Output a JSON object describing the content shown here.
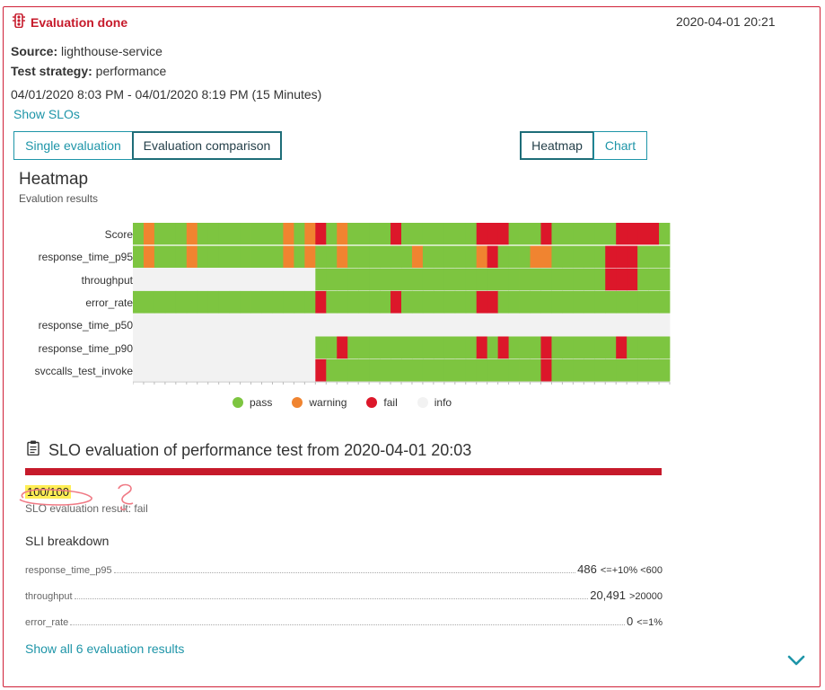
{
  "header": {
    "status": "Evaluation done",
    "timestamp": "2020-04-01 20:21",
    "source_label": "Source:",
    "source_value": "lighthouse-service",
    "strategy_label": "Test strategy:",
    "strategy_value": "performance",
    "timeframe": "04/01/2020 8:03 PM - 04/01/2020 8:19 PM (15 Minutes)",
    "show_slos": "Show SLOs"
  },
  "tabs": {
    "single": "Single evaluation",
    "comparison": "Evaluation comparison",
    "heatmap": "Heatmap",
    "chart": "Chart"
  },
  "heatmap": {
    "title": "Heatmap",
    "subtitle": "Evalution results",
    "rows": [
      "Score",
      "response_time_p95",
      "throughput",
      "error_rate",
      "response_time_p50",
      "response_time_p90",
      "svccalls_test_invoke"
    ],
    "columns": 50,
    "colors": {
      "pass": "#7dc540",
      "warning": "#f08430",
      "fail": "#dc172a",
      "info": "#f2f2f2"
    },
    "cells": [
      "PWPPPWPPPPPPPPWPWFPWPPPPFPPPPPPPFFFPPPFPPPPPPFFFFP",
      "PWPPPWPPPPPPPPWPWPPWPPPPPPWPPPPPWFPPPWWPPPPPFFFPPP",
      "IIIIIIIIIIIIIIIIIPPPPPPPPPPPPPPPPPPPPPPPPPPPFFFPPP",
      "PPPPPPPPPPPPPPPPPFPPPPPPFPPPPPPPFFPPPPPPPPPPPPPPPP",
      "IIIIIIIIIIIIIIIIIIIIIIIIIIIIIIIIIIIIIIIIIIIIIIIIII",
      "IIIIIIIIIIIIIIIIIPPFPPPPPPPPPPPPFPFPPPFPPPPPPFPPPP",
      "IIIIIIIIIIIIIIIIIFPPPPPPPPPPPPPPPPPPPPFPPPPPPPPPPP"
    ],
    "legend": [
      "pass",
      "warning",
      "fail",
      "info"
    ]
  },
  "slo": {
    "title": "SLO evaluation of performance test from 2020-04-01 20:03",
    "score": "100/100",
    "result": "SLO evaluation result: fail",
    "breakdown_title": "SLI breakdown",
    "slis": [
      {
        "name": "response_time_p95",
        "value": "486",
        "criteria": "<=+10% <600"
      },
      {
        "name": "throughput",
        "value": "20,491",
        "criteria": ">20000"
      },
      {
        "name": "error_rate",
        "value": "0",
        "criteria": "<=1%"
      }
    ],
    "show_all": "Show all 6 evaluation results"
  },
  "icons": [
    "traffic-light-icon",
    "clipboard-icon",
    "chevron-down-icon"
  ]
}
